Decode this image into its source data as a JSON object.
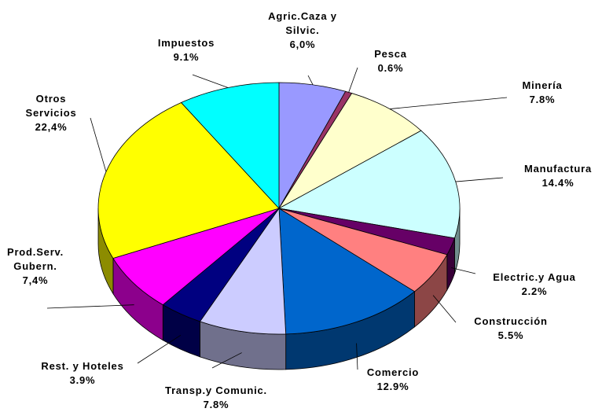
{
  "chart_data": {
    "type": "pie",
    "categories": [
      "Agric.Caza y Silvic.",
      "Pesca",
      "Minería",
      "Manufactura",
      "Electric.y Agua",
      "Construcción",
      "Comercio",
      "Transp.y Comunic.",
      "Rest. y Hoteles",
      "Prod.Serv. Gubern.",
      "Otros Servicios",
      "Impuestos"
    ],
    "values": [
      6.0,
      0.6,
      7.8,
      14.4,
      2.2,
      5.5,
      12.9,
      7.8,
      3.9,
      7.4,
      22.4,
      9.1
    ],
    "value_labels": [
      "6,0%",
      "0.6%",
      "7.8%",
      "14.4%",
      "2.2%",
      "5.5%",
      "12.9%",
      "7.8%",
      "3.9%",
      "7,4%",
      "22,4%",
      "9.1%"
    ],
    "colors": [
      "#9999ff",
      "#993366",
      "#ffffcc",
      "#ccffff",
      "#660066",
      "#ff8080",
      "#0066cc",
      "#ccccff",
      "#000080",
      "#ff00ff",
      "#ffff00",
      "#00ffff"
    ]
  }
}
